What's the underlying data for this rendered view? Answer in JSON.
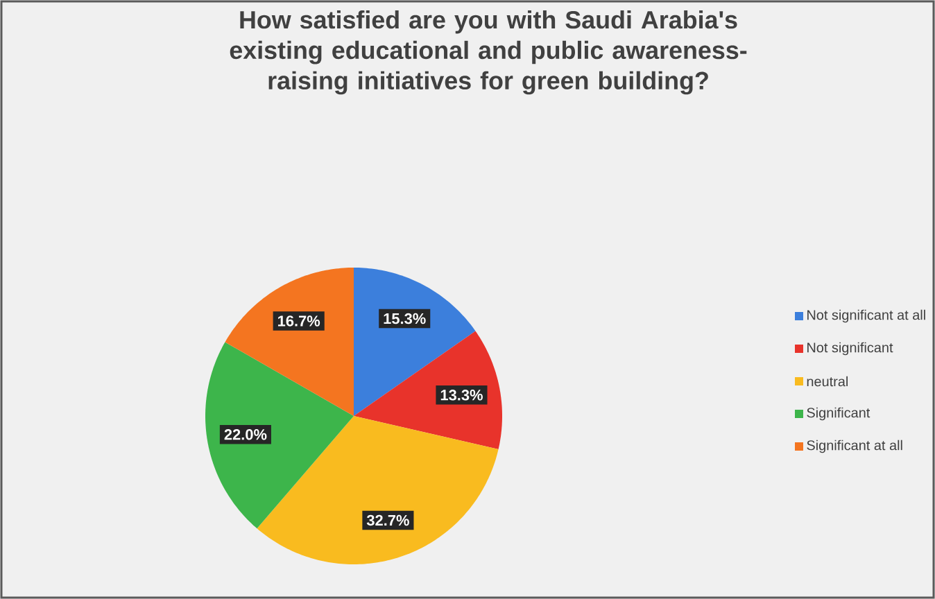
{
  "chart_data": {
    "type": "pie",
    "title": "How satisfied are you with Saudi Arabia's existing educational and public awareness-raising initiatives for green building?",
    "categories": [
      "Not significant at all",
      "Not significant",
      "neutral",
      "Significant",
      "Significant at all"
    ],
    "values": [
      15.3,
      13.3,
      32.7,
      22.0,
      16.7
    ],
    "value_labels": [
      "15.3%",
      "13.3%",
      "32.7%",
      "22.0%",
      "16.7%"
    ],
    "colors": [
      "#3c7fdc",
      "#e8332b",
      "#f9bb1f",
      "#3db54b",
      "#f47520"
    ],
    "legend": "right"
  }
}
